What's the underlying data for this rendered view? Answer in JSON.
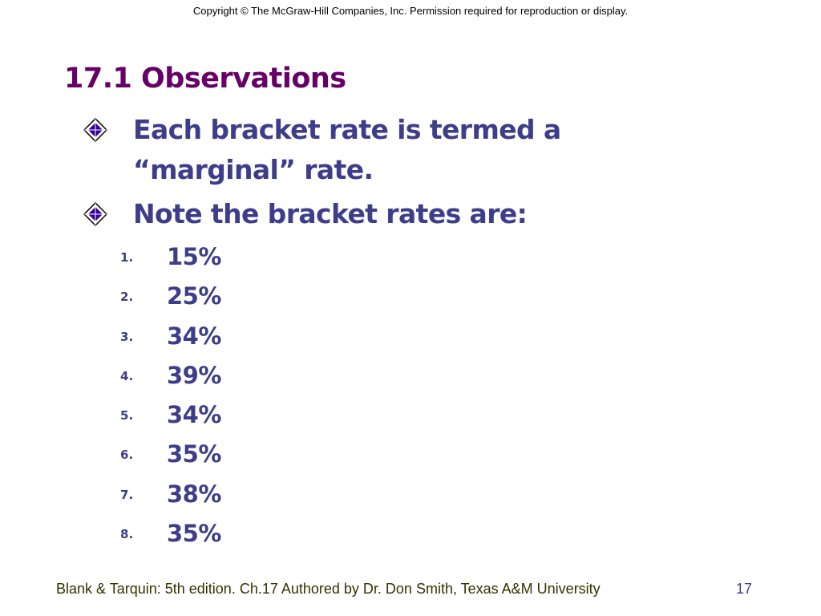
{
  "header": {
    "copyright": "Copyright © The McGraw-Hill Companies, Inc. Permission required for reproduction or display."
  },
  "slide": {
    "title": "17.1 Observations",
    "bullets": [
      {
        "icon": "diamond-bullet-icon",
        "lines": [
          "Each bracket rate is termed a",
          "“marginal” rate."
        ]
      },
      {
        "icon": "diamond-bullet-icon",
        "lines": [
          "Note the bracket rates are:"
        ]
      }
    ],
    "rates": [
      {
        "num": "1",
        "text": "15%"
      },
      {
        "num": "2",
        "text": "25%"
      },
      {
        "num": "3",
        "text": "34%"
      },
      {
        "num": "4",
        "text": "39%"
      },
      {
        "num": "5",
        "text": "34%"
      },
      {
        "num": "6",
        "text": "35%"
      },
      {
        "num": "7",
        "text": "38%"
      },
      {
        "num": "8",
        "text": "35%"
      }
    ]
  },
  "footer": {
    "text": "Blank & Tarquin: 5th edition. Ch.17 Authored by Dr. Don Smith, Texas A&M University",
    "page_number": "17"
  },
  "colors": {
    "title": "#660066",
    "body": "#3d3d8a",
    "footer": "#333300",
    "bullet_fill": "#330099"
  }
}
